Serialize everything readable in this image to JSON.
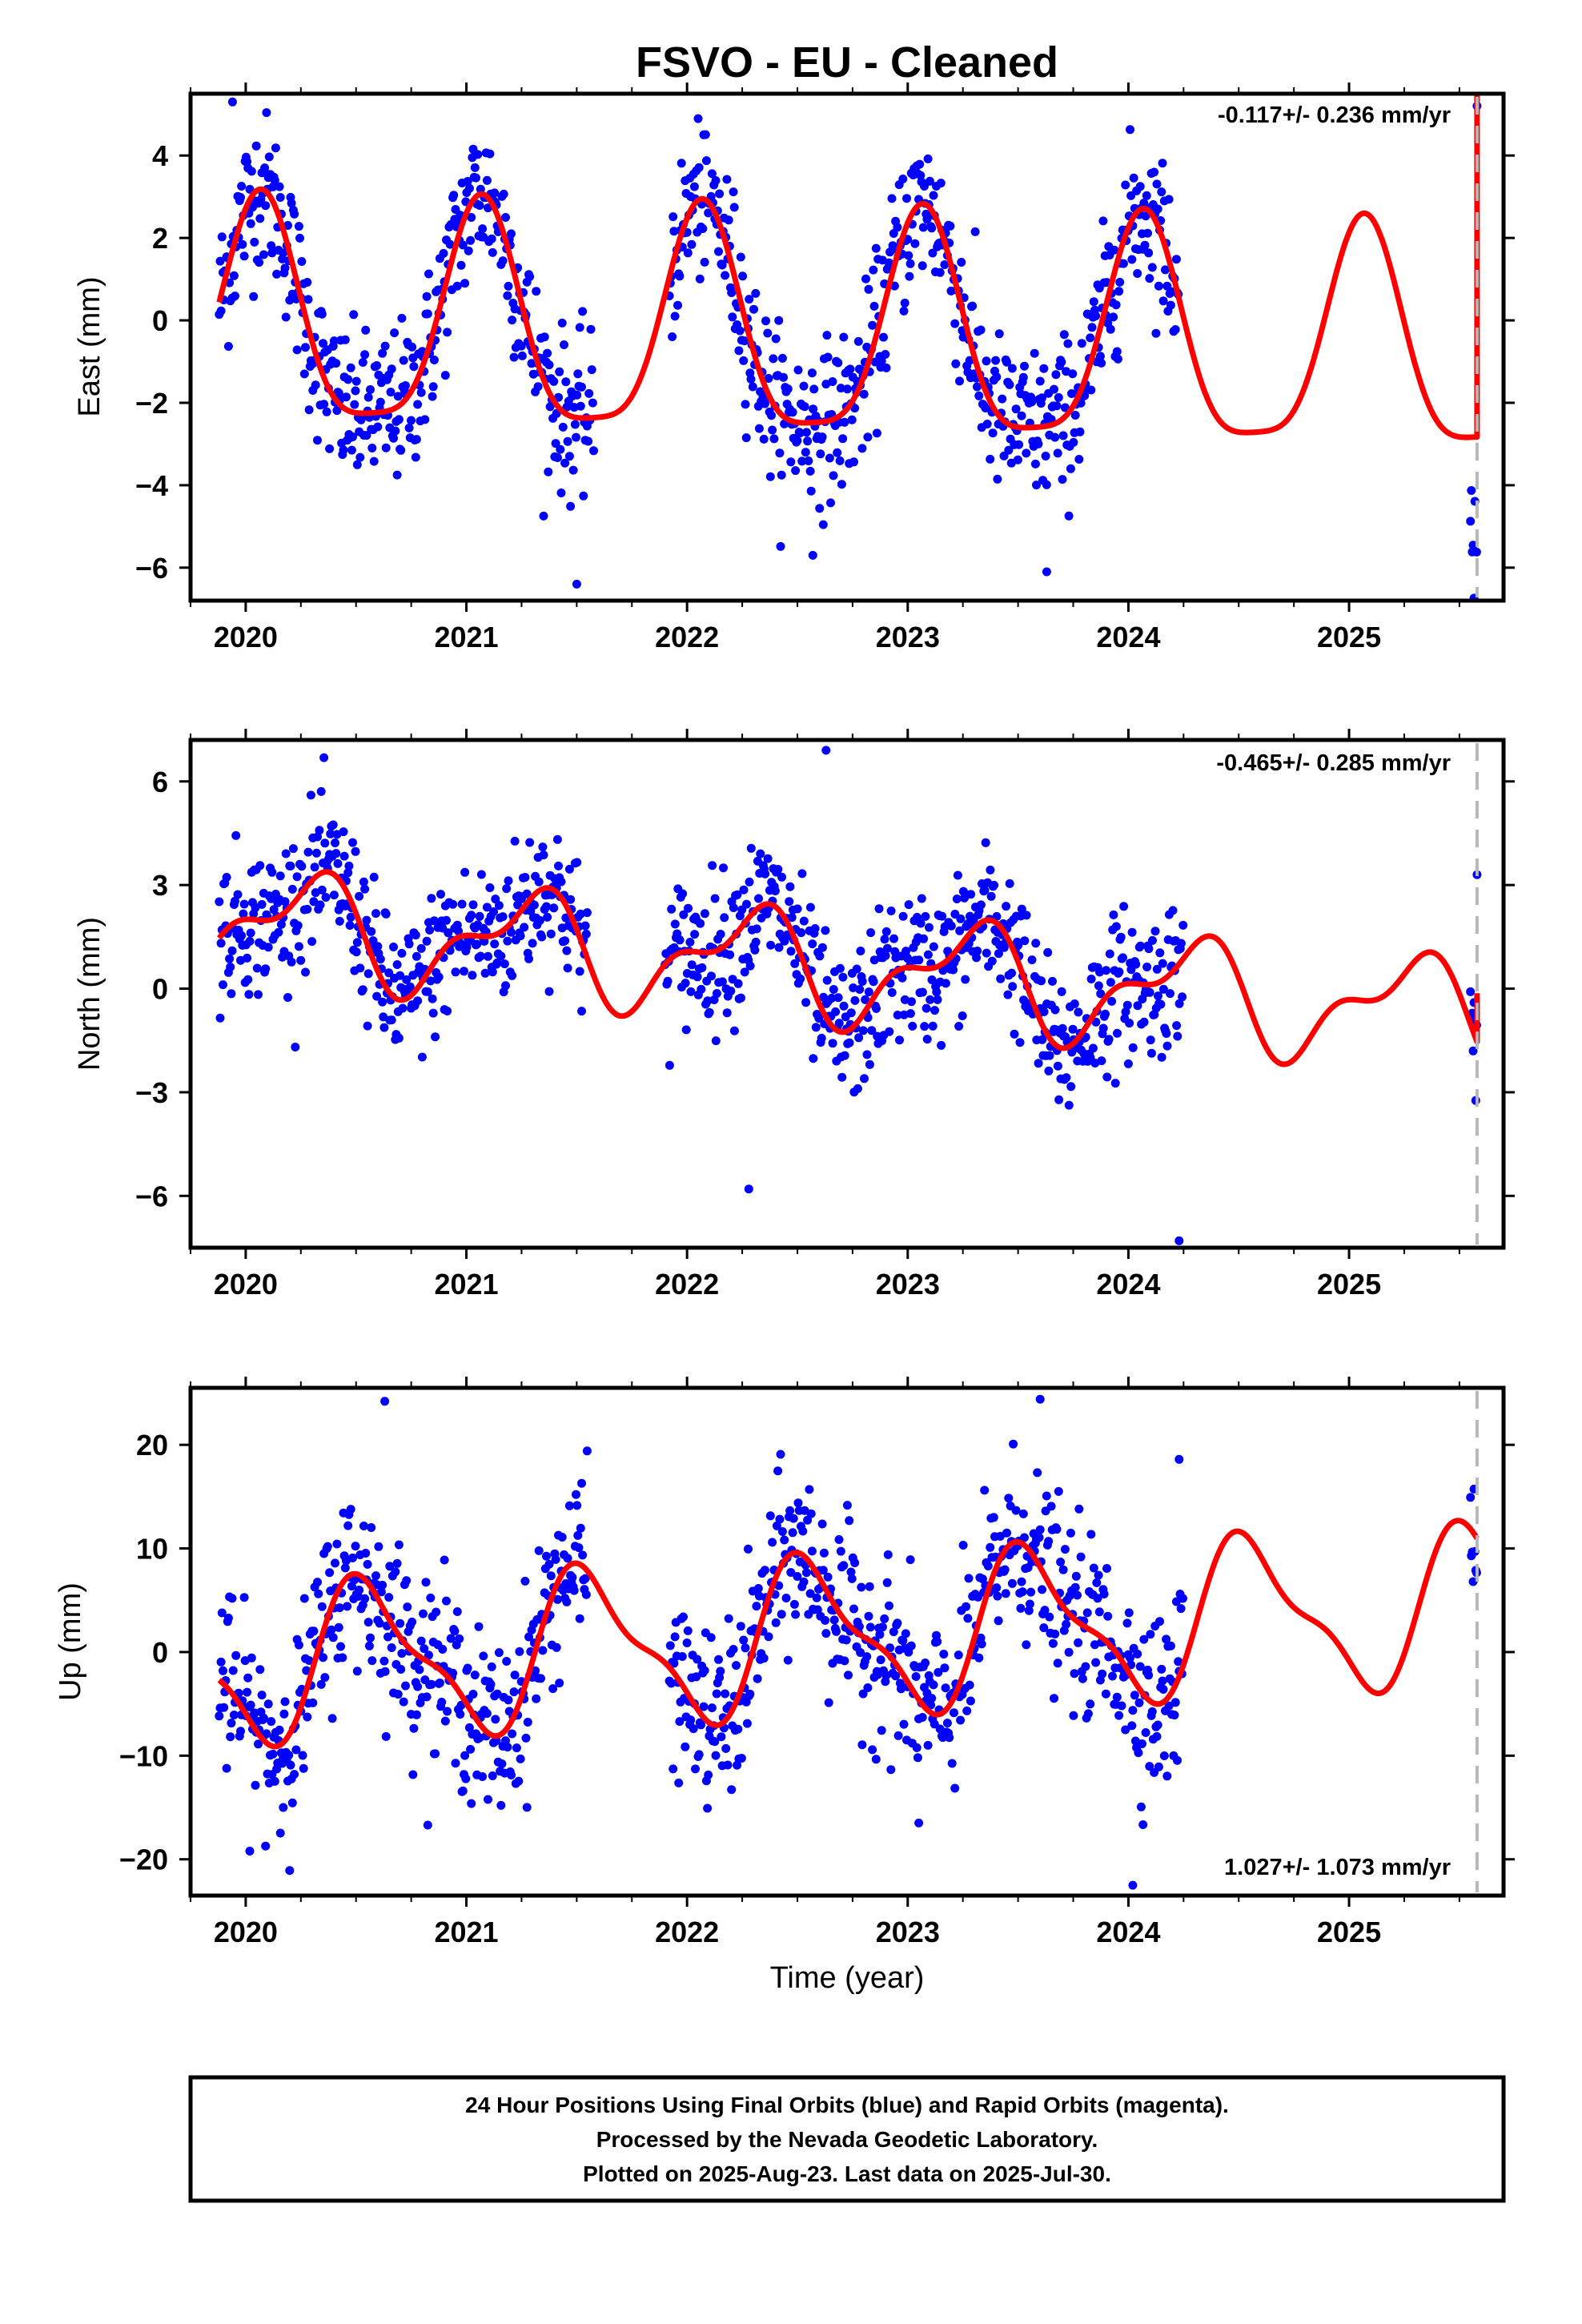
{
  "title": "FSVO  - EU - Cleaned",
  "xlabel": "Time (year)",
  "footer": [
    "24 Hour Positions Using Final Orbits (blue) and Rapid Orbits (magenta).",
    "Processed by the Nevada Geodetic Laboratory.",
    "Plotted on 2025-Aug-23. Last data on 2025-Jul-30."
  ],
  "colors": {
    "points": "#0000ff",
    "fit": "#ff0000",
    "axis": "#000000",
    "last_data_line": "#b8b8b8"
  },
  "chart_data": [
    {
      "type": "scatter",
      "component": "east",
      "ylabel": "East (mm)",
      "rate_text": "-0.117+/- 0.236 mm/yr",
      "xlim": [
        2019.75,
        2025.7
      ],
      "ylim": [
        -6.8,
        5.5
      ],
      "xticks": [
        2020,
        2021,
        2022,
        2023,
        2024,
        2025
      ],
      "yticks": [
        -6,
        -4,
        -2,
        0,
        2,
        4
      ],
      "last_data_year": 2025.58,
      "data_ranges": [
        [
          2019.88,
          2021.58
        ],
        [
          2021.92,
          2024.23
        ],
        [
          2025.55,
          2025.58
        ]
      ],
      "fit_model": {
        "offset": -0.45,
        "rate": -0.117,
        "annual_cos": 2.45,
        "annual_sin": 1.1,
        "semiannual_cos": 0.4,
        "semiannual_sin": 0.5,
        "mid_year": 2022.7,
        "end_jump": 8.5
      },
      "scatter_sd": 0.95,
      "outliers": [
        [
          2019.94,
          5.3
        ],
        [
          2021.5,
          -6.4
        ],
        [
          2022.57,
          -5.7
        ],
        [
          2023.63,
          -6.1
        ],
        [
          2025.58,
          5.2
        ]
      ]
    },
    {
      "type": "scatter",
      "component": "north",
      "ylabel": "North (mm)",
      "rate_text": "-0.465+/- 0.285 mm/yr",
      "xlim": [
        2019.75,
        2025.7
      ],
      "ylim": [
        -7.5,
        7.2
      ],
      "xticks": [
        2020,
        2021,
        2022,
        2023,
        2024,
        2025
      ],
      "yticks": [
        -6,
        -3,
        0,
        3,
        6
      ],
      "last_data_year": 2025.58,
      "data_ranges": [
        [
          2019.88,
          2021.55
        ],
        [
          2021.9,
          2024.25
        ],
        [
          2025.55,
          2025.58
        ]
      ],
      "fit_model": {
        "offset": 0.6,
        "rate": -0.465,
        "annual_cos": -0.2,
        "annual_sin": 1.35,
        "semiannual_cos": 0.35,
        "semiannual_sin": -0.6,
        "mid_year": 2022.7,
        "end_jump": 1.4
      },
      "scatter_sd": 1.05,
      "outliers": [
        [
          2022.63,
          6.9
        ],
        [
          2024.23,
          -7.3
        ],
        [
          2022.28,
          -5.8
        ],
        [
          2025.58,
          3.3
        ]
      ]
    },
    {
      "type": "scatter",
      "component": "up",
      "ylabel": "Up (mm)",
      "rate_text": "1.027+/- 1.073 mm/yr",
      "xlim": [
        2019.75,
        2025.7
      ],
      "ylim": [
        -23.5,
        25.5
      ],
      "xticks": [
        2020,
        2021,
        2022,
        2023,
        2024,
        2025
      ],
      "yticks": [
        -20,
        -10,
        0,
        10,
        20
      ],
      "last_data_year": 2025.58,
      "data_ranges": [
        [
          2019.88,
          2021.55
        ],
        [
          2021.92,
          2024.25
        ],
        [
          2025.55,
          2025.58
        ]
      ],
      "fit_model": {
        "offset": 1.5,
        "rate": 1.027,
        "annual_cos": -6.5,
        "annual_sin": -2.5,
        "semiannual_cos": 1.8,
        "semiannual_sin": -1.6,
        "mid_year": 2022.7,
        "end_jump": 0
      },
      "scatter_sd": 4.2,
      "outliers": [
        [
          2020.63,
          24.2
        ],
        [
          2023.6,
          24.4
        ],
        [
          2024.23,
          18.6
        ],
        [
          2024.02,
          -22.5
        ],
        [
          2020.17,
          -15
        ],
        [
          2023.05,
          -16.5
        ]
      ]
    }
  ]
}
